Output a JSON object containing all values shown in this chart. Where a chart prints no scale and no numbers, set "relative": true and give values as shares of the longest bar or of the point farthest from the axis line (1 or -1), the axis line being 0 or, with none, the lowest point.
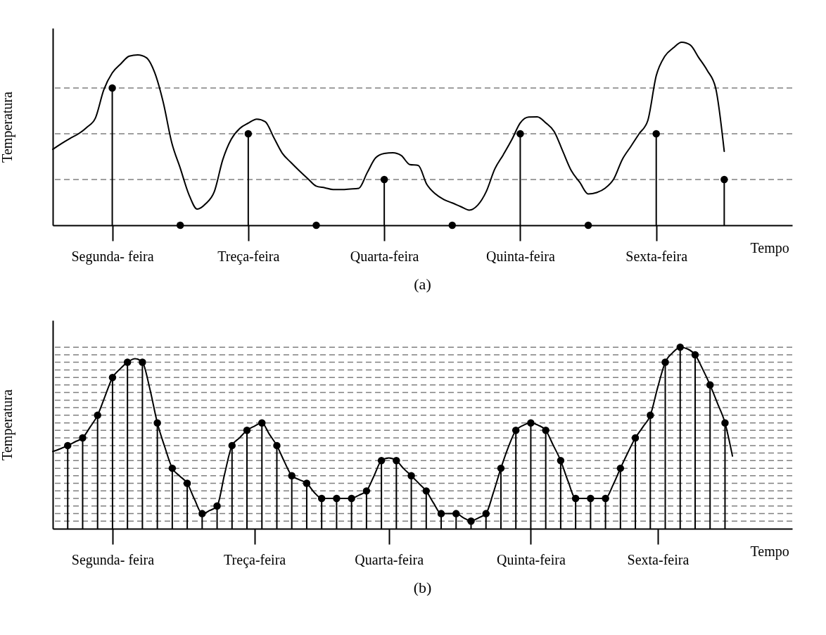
{
  "chart_data": [
    {
      "type": "line",
      "title": "(a)",
      "xlabel": "Tempo",
      "ylabel": "Temperatura",
      "relative": true,
      "tick_labels": "x",
      "categories": [
        null,
        null,
        null,
        null,
        null,
        null,
        null,
        "Segunda- feira",
        null,
        null,
        null,
        null,
        null,
        null,
        null,
        null,
        null,
        null,
        null,
        null,
        null,
        null,
        null,
        "Treça-feira",
        null,
        null,
        null,
        null,
        null,
        null,
        null,
        null,
        null,
        null,
        null,
        null,
        null,
        null,
        null,
        "Quarta-feira",
        null,
        null,
        null,
        null,
        null,
        null,
        null,
        null,
        null,
        null,
        null,
        null,
        null,
        null,
        null,
        "Quinta-feira",
        null,
        null,
        null,
        null,
        null,
        null,
        null,
        null,
        null,
        null,
        null,
        null,
        null,
        null,
        null,
        "Sexta-feira",
        null,
        null,
        null,
        null,
        null,
        null,
        null,
        null,
        null,
        null,
        null,
        null,
        null,
        null,
        null,
        null
      ],
      "ref_lines": [
        {
          "axis": "y",
          "value": 0.25,
          "color": "#808080",
          "line_style": "dashed"
        },
        {
          "axis": "y",
          "value": 0.5,
          "color": "#808080",
          "line_style": "dashed"
        },
        {
          "axis": "y",
          "value": 0.75,
          "color": "#808080",
          "line_style": "dashed"
        }
      ],
      "series": [
        {
          "type": "line",
          "color": "#000000",
          "values": [
            0.415,
            0.446,
            0.474,
            0.499,
            0.535,
            0.584,
            0.74,
            0.833,
            0.882,
            0.924,
            0.931,
            0.916,
            0.833,
            0.671,
            0.451,
            0.312,
            0.17,
            0.088,
            0.118,
            0.183,
            0.358,
            0.47,
            0.529,
            0.558,
            0.58,
            0.566,
            0.48,
            0.394,
            0.344,
            0.298,
            0.255,
            0.214,
            0.205,
            0.195,
            0.195,
            0.198,
            0.202,
            0.288,
            0.369,
            0.392,
            0.396,
            0.381,
            0.332,
            0.327,
            0.224,
            0.172,
            0.141,
            0.122,
            0.102,
            0.083,
            0.11,
            0.184,
            0.307,
            0.385,
            0.467,
            0.559,
            0.591,
            0.592,
            0.56,
            0.512,
            0.405,
            0.299,
            0.235,
            0.171,
            0.179,
            0.203,
            0.253,
            0.359,
            0.43,
            0.501,
            0.571,
            0.817,
            0.923,
            0.969,
            1,
            0.985,
            0.916,
            0.846,
            0.748,
            0.404,
            null,
            null,
            null,
            null,
            null,
            null,
            null,
            null
          ]
        },
        {
          "type": "lollipop",
          "color": "#000000",
          "marker": "circle",
          "values": [
            null,
            null,
            null,
            null,
            null,
            null,
            null,
            0.75,
            null,
            null,
            null,
            null,
            null,
            null,
            null,
            0,
            null,
            null,
            null,
            null,
            null,
            null,
            null,
            0.5,
            null,
            null,
            null,
            null,
            null,
            null,
            null,
            0,
            null,
            null,
            null,
            null,
            null,
            null,
            null,
            0.25,
            null,
            null,
            null,
            null,
            null,
            null,
            null,
            0,
            null,
            null,
            null,
            null,
            null,
            null,
            null,
            0.5,
            null,
            null,
            null,
            null,
            null,
            null,
            null,
            0,
            null,
            null,
            null,
            null,
            null,
            null,
            null,
            0.5,
            null,
            null,
            null,
            null,
            null,
            null,
            null,
            0.25,
            null,
            null,
            null,
            null,
            null,
            null,
            null,
            null
          ]
        }
      ]
    },
    {
      "type": "line",
      "title": "(b)",
      "xlabel": "Tempo",
      "ylabel": "Temperatura",
      "relative": true,
      "tick_labels": "x",
      "categories": [
        null,
        null,
        null,
        null,
        null,
        null,
        null,
        null,
        "Segunda- feira",
        null,
        null,
        null,
        null,
        null,
        null,
        null,
        null,
        null,
        null,
        null,
        null,
        null,
        null,
        null,
        null,
        null,
        null,
        "Treça-feira",
        null,
        null,
        null,
        null,
        null,
        null,
        null,
        null,
        null,
        null,
        null,
        null,
        null,
        null,
        null,
        null,
        null,
        "Quarta-feira",
        null,
        null,
        null,
        null,
        null,
        null,
        null,
        null,
        null,
        null,
        null,
        null,
        null,
        null,
        null,
        null,
        null,
        null,
        "Quinta-feira",
        null,
        null,
        null,
        null,
        null,
        null,
        null,
        null,
        null,
        null,
        null,
        null,
        null,
        null,
        null,
        null,
        "Sexta-feira",
        null,
        null,
        null,
        null,
        null,
        null,
        null,
        null,
        null,
        null,
        null,
        null,
        null,
        null,
        null,
        null,
        null,
        null
      ],
      "ref_lines": [
        {
          "axis": "y",
          "value": 0.042,
          "color": "#808080",
          "line_style": "dashed"
        },
        {
          "axis": "y",
          "value": 0.083,
          "color": "#808080",
          "line_style": "dashed"
        },
        {
          "axis": "y",
          "value": 0.125,
          "color": "#808080",
          "line_style": "dashed"
        },
        {
          "axis": "y",
          "value": 0.167,
          "color": "#808080",
          "line_style": "dashed"
        },
        {
          "axis": "y",
          "value": 0.208,
          "color": "#808080",
          "line_style": "dashed"
        },
        {
          "axis": "y",
          "value": 0.25,
          "color": "#808080",
          "line_style": "dashed"
        },
        {
          "axis": "y",
          "value": 0.292,
          "color": "#808080",
          "line_style": "dashed"
        },
        {
          "axis": "y",
          "value": 0.333,
          "color": "#808080",
          "line_style": "dashed"
        },
        {
          "axis": "y",
          "value": 0.375,
          "color": "#808080",
          "line_style": "dashed"
        },
        {
          "axis": "y",
          "value": 0.417,
          "color": "#808080",
          "line_style": "dashed"
        },
        {
          "axis": "y",
          "value": 0.458,
          "color": "#808080",
          "line_style": "dashed"
        },
        {
          "axis": "y",
          "value": 0.5,
          "color": "#808080",
          "line_style": "dashed"
        },
        {
          "axis": "y",
          "value": 0.542,
          "color": "#808080",
          "line_style": "dashed"
        },
        {
          "axis": "y",
          "value": 0.583,
          "color": "#808080",
          "line_style": "dashed"
        },
        {
          "axis": "y",
          "value": 0.625,
          "color": "#808080",
          "line_style": "dashed"
        },
        {
          "axis": "y",
          "value": 0.667,
          "color": "#808080",
          "line_style": "dashed"
        },
        {
          "axis": "y",
          "value": 0.708,
          "color": "#808080",
          "line_style": "dashed"
        },
        {
          "axis": "y",
          "value": 0.75,
          "color": "#808080",
          "line_style": "dashed"
        },
        {
          "axis": "y",
          "value": 0.792,
          "color": "#808080",
          "line_style": "dashed"
        },
        {
          "axis": "y",
          "value": 0.833,
          "color": "#808080",
          "line_style": "dashed"
        },
        {
          "axis": "y",
          "value": 0.875,
          "color": "#808080",
          "line_style": "dashed"
        },
        {
          "axis": "y",
          "value": 0.917,
          "color": "#808080",
          "line_style": "dashed"
        },
        {
          "axis": "y",
          "value": 0.958,
          "color": "#808080",
          "line_style": "dashed"
        },
        {
          "axis": "y",
          "value": 1,
          "color": "#808080",
          "line_style": "dashed"
        }
      ],
      "series": [
        {
          "type": "line",
          "color": "#000000",
          "values": [
            0.425,
            0.44,
            0.458,
            0.479,
            0.5,
            0.56,
            0.625,
            0.73,
            0.833,
            0.88,
            0.917,
            0.937,
            0.917,
            0.77,
            0.583,
            0.45,
            0.333,
            0.29,
            0.25,
            0.16,
            0.083,
            0.1,
            0.125,
            0.3,
            0.458,
            0.5,
            0.542,
            0.565,
            0.583,
            0.52,
            0.458,
            0.37,
            0.292,
            0.27,
            0.25,
            0.2,
            0.167,
            0.167,
            0.167,
            0.167,
            0.167,
            0.185,
            0.208,
            0.29,
            0.375,
            0.39,
            0.375,
            0.33,
            0.292,
            0.25,
            0.208,
            0.14,
            0.083,
            0.083,
            0.083,
            0.06,
            0.042,
            0.06,
            0.083,
            0.2,
            0.333,
            0.45,
            0.542,
            0.57,
            0.583,
            0.57,
            0.542,
            0.46,
            0.375,
            0.26,
            0.167,
            0.167,
            0.167,
            0.167,
            0.167,
            0.24,
            0.333,
            0.42,
            0.5,
            0.56,
            0.625,
            0.78,
            0.917,
            0.97,
            1,
            0.99,
            0.958,
            0.88,
            0.792,
            0.69,
            0.583,
            0.4,
            null,
            null,
            null,
            null,
            null,
            null,
            null,
            null
          ]
        },
        {
          "type": "lollipop",
          "color": "#000000",
          "marker": "circle",
          "values": [
            null,
            null,
            0.458,
            null,
            0.5,
            null,
            0.625,
            null,
            0.833,
            null,
            0.917,
            null,
            0.917,
            null,
            0.583,
            null,
            0.333,
            null,
            0.25,
            null,
            0.083,
            null,
            0.125,
            null,
            0.458,
            null,
            0.542,
            null,
            0.583,
            null,
            0.458,
            null,
            0.292,
            null,
            0.25,
            null,
            0.167,
            null,
            0.167,
            null,
            0.167,
            null,
            0.208,
            null,
            0.375,
            null,
            0.375,
            null,
            0.292,
            null,
            0.208,
            null,
            0.083,
            null,
            0.083,
            null,
            0.042,
            null,
            0.083,
            null,
            0.333,
            null,
            0.542,
            null,
            0.583,
            null,
            0.542,
            null,
            0.375,
            null,
            0.167,
            null,
            0.167,
            null,
            0.167,
            null,
            0.333,
            null,
            0.5,
            null,
            0.625,
            null,
            0.917,
            null,
            1,
            null,
            0.958,
            null,
            0.792,
            null,
            0.583,
            null,
            null,
            null,
            null,
            null,
            null,
            null,
            null,
            null
          ]
        }
      ]
    }
  ]
}
